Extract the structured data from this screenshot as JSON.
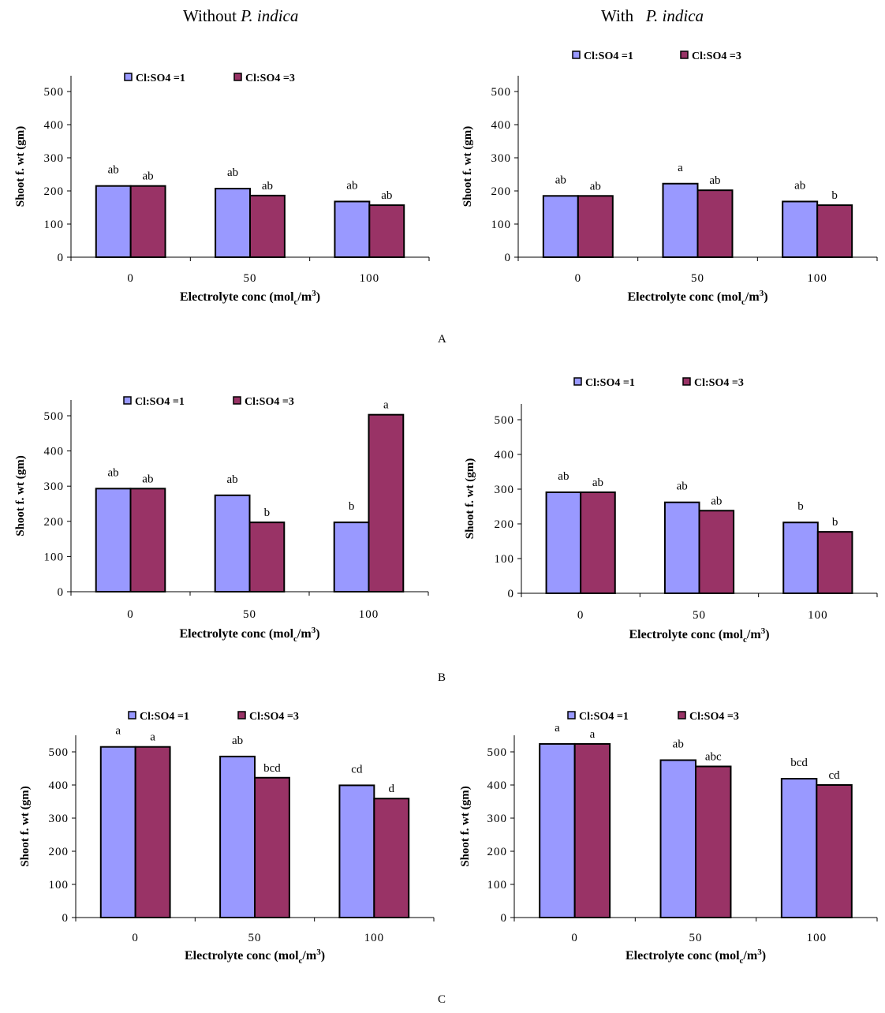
{
  "headers": {
    "left": {
      "prefix": "Without",
      "species": "P. indica"
    },
    "right": {
      "prefix": "With",
      "species": "P. indica"
    }
  },
  "panel_labels": [
    "A",
    "B",
    "C"
  ],
  "colors": {
    "series1": "#9999FF",
    "series2": "#993366"
  },
  "chart_data": [
    {
      "id": "A-without",
      "type": "bar",
      "panel": "A",
      "condition": "Without P. indica",
      "categories": [
        "0",
        "50",
        "100"
      ],
      "xlabel": "Electrolyte conc (mol_c/m^3)",
      "ylabel": "Shoot f. wt (gm)",
      "ylim": [
        0,
        500
      ],
      "yticks": [
        0,
        100,
        200,
        300,
        400,
        500
      ],
      "grid": false,
      "legend": "top",
      "series": [
        {
          "name": "Cl:SO4 =1",
          "values": [
            215,
            207,
            168
          ],
          "labels": [
            "ab",
            "ab",
            "ab"
          ]
        },
        {
          "name": "Cl:SO4 =3",
          "values": [
            215,
            186,
            157
          ],
          "labels": [
            "ab",
            "ab",
            "ab"
          ]
        }
      ]
    },
    {
      "id": "A-with",
      "type": "bar",
      "panel": "A",
      "condition": "With P. indica",
      "categories": [
        "0",
        "50",
        "100"
      ],
      "xlabel": "Electrolyte conc (mol_c/m^3)",
      "ylabel": "Shoot f. wt (gm)",
      "ylim": [
        0,
        500
      ],
      "yticks": [
        0,
        100,
        200,
        300,
        400,
        500
      ],
      "grid": false,
      "legend": "top",
      "series": [
        {
          "name": "Cl:SO4 =1",
          "values": [
            185,
            222,
            168
          ],
          "labels": [
            "ab",
            "a",
            "ab"
          ]
        },
        {
          "name": "Cl:SO4 =3",
          "values": [
            185,
            202,
            157
          ],
          "labels": [
            "ab",
            "ab",
            "b"
          ]
        }
      ]
    },
    {
      "id": "B-without",
      "type": "bar",
      "panel": "B",
      "condition": "Without P. indica",
      "categories": [
        "0",
        "50",
        "100"
      ],
      "xlabel": "Electrolyte conc (mol_c/m^3)",
      "ylabel": "Shoot f. wt (gm)",
      "ylim": [
        0,
        500
      ],
      "yticks": [
        0,
        100,
        200,
        300,
        400,
        500
      ],
      "grid": false,
      "legend": "top",
      "series": [
        {
          "name": "Cl:SO4 =1",
          "values": [
            293,
            274,
            197
          ],
          "labels": [
            "ab",
            "ab",
            "b"
          ]
        },
        {
          "name": "Cl:SO4 =3",
          "values": [
            293,
            197,
            503
          ],
          "labels": [
            "ab",
            "b",
            "a"
          ]
        }
      ]
    },
    {
      "id": "B-with",
      "type": "bar",
      "panel": "B",
      "condition": "With P. indica",
      "categories": [
        "0",
        "50",
        "100"
      ],
      "xlabel": "Electrolyte conc (mol_c/m^3)",
      "ylabel": "Shoot f. wt (gm)",
      "ylim": [
        0,
        500
      ],
      "yticks": [
        0,
        100,
        200,
        300,
        400,
        500
      ],
      "grid": false,
      "legend": "top",
      "series": [
        {
          "name": "Cl:SO4 =1",
          "values": [
            291,
            262,
            204
          ],
          "labels": [
            "ab",
            "ab",
            "b"
          ]
        },
        {
          "name": "Cl:SO4 =3",
          "values": [
            291,
            238,
            177
          ],
          "labels": [
            "ab",
            "ab",
            "b"
          ]
        }
      ]
    },
    {
      "id": "C-without",
      "type": "bar",
      "panel": "C",
      "condition": "Without P. indica",
      "categories": [
        "0",
        "50",
        "100"
      ],
      "xlabel": "Electrolyte conc (mol_c/m^3)",
      "ylabel": "Shoot f. wt (gm)",
      "ylim": [
        0,
        500
      ],
      "yticks": [
        0,
        100,
        200,
        300,
        400,
        500
      ],
      "grid": false,
      "legend": "top",
      "series": [
        {
          "name": "Cl:SO4 =1",
          "values": [
            515,
            486,
            399
          ],
          "labels": [
            "a",
            "ab",
            "cd"
          ]
        },
        {
          "name": "Cl:SO4 =3",
          "values": [
            515,
            422,
            359
          ],
          "labels": [
            "a",
            "bcd",
            "d"
          ]
        }
      ]
    },
    {
      "id": "C-with",
      "type": "bar",
      "panel": "C",
      "condition": "With P. indica",
      "categories": [
        "0",
        "50",
        "100"
      ],
      "xlabel": "Electrolyte conc (mol_c/m^3)",
      "ylabel": "Shoot f. wt (gm)",
      "ylim": [
        0,
        500
      ],
      "yticks": [
        0,
        100,
        200,
        300,
        400,
        500
      ],
      "grid": false,
      "legend": "top",
      "series": [
        {
          "name": "Cl:SO4 =1",
          "values": [
            524,
            475,
            419
          ],
          "labels": [
            "a",
            "ab",
            "bcd"
          ]
        },
        {
          "name": "Cl:SO4 =3",
          "values": [
            524,
            456,
            400
          ],
          "labels": [
            "a",
            "abc",
            "cd"
          ]
        }
      ]
    }
  ]
}
